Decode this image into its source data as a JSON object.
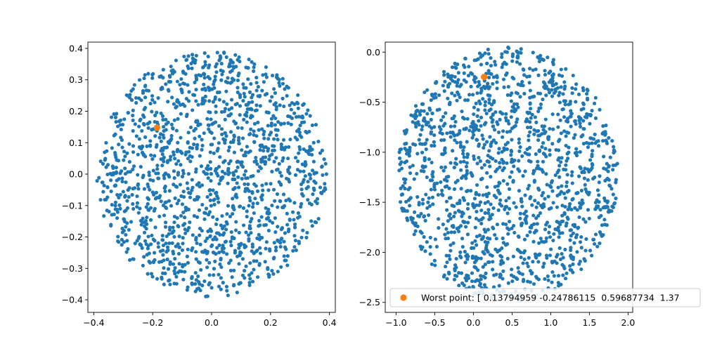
{
  "chart_data": [
    {
      "type": "scatter",
      "xlim": [
        -0.42,
        0.42
      ],
      "ylim": [
        -0.44,
        0.42
      ],
      "xticks": [
        "−0.4",
        "−0.2",
        "0.0",
        "0.2",
        "0.4"
      ],
      "xtick_values": [
        -0.4,
        -0.2,
        0.0,
        0.2,
        0.4
      ],
      "yticks": [
        "−0.4",
        "−0.3",
        "−0.2",
        "−0.1",
        "0.0",
        "0.1",
        "0.2",
        "0.3",
        "0.4"
      ],
      "ytick_values": [
        -0.4,
        -0.3,
        -0.2,
        -0.1,
        0.0,
        0.1,
        0.2,
        0.3,
        0.4
      ],
      "grid": false,
      "series": [
        {
          "color": "#1f77b4",
          "marker_size": "small",
          "distribution": {
            "shape": "disk",
            "center": [
              0.0,
              0.0
            ],
            "radius": 0.39,
            "count": 1500
          }
        },
        {
          "color": "#ff7f0e",
          "marker_size": "large",
          "points": [
            [
              -0.185,
              0.148
            ]
          ]
        }
      ]
    },
    {
      "type": "scatter",
      "xlim": [
        -1.14,
        2.06
      ],
      "ylim": [
        -2.6,
        0.1
      ],
      "xticks": [
        "−1.0",
        "−0.5",
        "0.0",
        "0.5",
        "1.0",
        "1.5",
        "2.0"
      ],
      "xtick_values": [
        -1.0,
        -0.5,
        0.0,
        0.5,
        1.0,
        1.5,
        2.0
      ],
      "yticks": [
        "−2.5",
        "−2.0",
        "−1.5",
        "−1.0",
        "−0.5",
        "0.0"
      ],
      "ytick_values": [
        -2.5,
        -2.0,
        -1.5,
        -1.0,
        -0.5,
        0.0
      ],
      "grid": false,
      "legend": {
        "location": "lower-right",
        "label": "Worst point: [ 0.13794959 -0.24786115  0.59687734  1.37"
      },
      "series": [
        {
          "color": "#1f77b4",
          "marker_size": "small",
          "distribution": {
            "shape": "ellipse",
            "center": [
              0.45,
              -1.22
            ],
            "radii": [
              1.43,
              1.27
            ],
            "count": 1500
          }
        },
        {
          "color": "#ff7f0e",
          "marker_size": "large",
          "points": [
            [
              0.13794959,
              -0.24786115
            ]
          ]
        }
      ]
    }
  ]
}
